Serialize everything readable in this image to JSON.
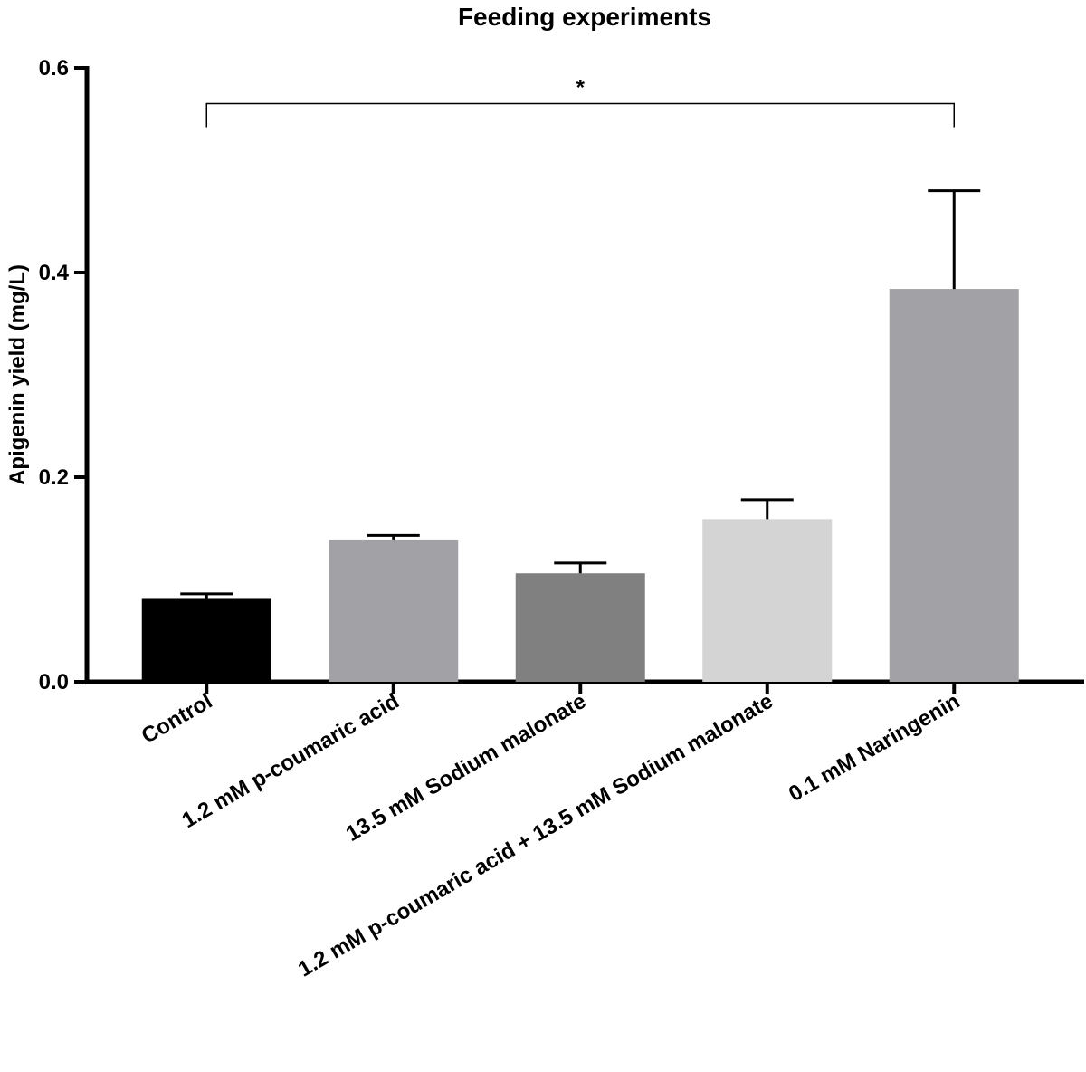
{
  "chart_data": {
    "type": "bar",
    "title": "Feeding experiments",
    "xlabel": "",
    "ylabel": "Apigenin yield (mg/L)",
    "ylim": [
      0,
      0.6
    ],
    "yticks": [
      0.0,
      0.2,
      0.4,
      0.6
    ],
    "ytick_labels": [
      "0.0",
      "0.2",
      "0.4",
      "0.6"
    ],
    "categories": [
      "Control",
      "1.2 mM p-coumaric acid",
      "13.5 mM Sodium malonate",
      "1.2 mM p-coumaric acid + 13.5 mM Sodium malonate",
      "0.1 mM Naringenin"
    ],
    "values": [
      0.081,
      0.139,
      0.106,
      0.159,
      0.384
    ],
    "errors": [
      0.005,
      0.004,
      0.01,
      0.019,
      0.096
    ],
    "colors": [
      "#000000",
      "#a2a1a6",
      "#808080",
      "#d4d4d4",
      "#a2a1a6"
    ],
    "grid": false,
    "significance": {
      "from": 0,
      "to": 4,
      "label": "*",
      "y": 0.565
    }
  }
}
